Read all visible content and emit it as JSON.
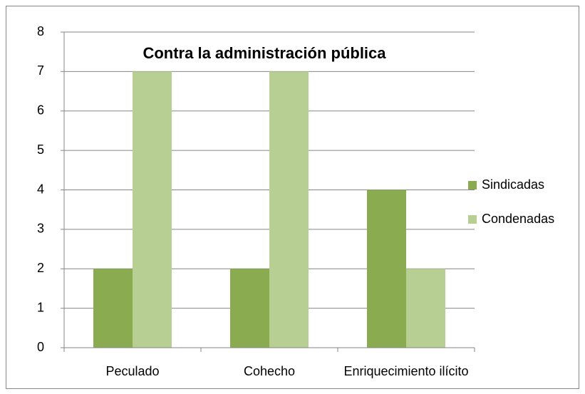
{
  "chart_data": {
    "type": "bar",
    "title": "Contra la administración pública",
    "categories": [
      "Peculado",
      "Cohecho",
      "Enriquecimiento ilícito"
    ],
    "series": [
      {
        "name": "Sindicadas",
        "color": "#8aab4f",
        "values": [
          2,
          2,
          4
        ]
      },
      {
        "name": "Condenadas",
        "color": "#b8cf93",
        "values": [
          7,
          7,
          2
        ]
      }
    ],
    "ylim": [
      0,
      8
    ],
    "yticks": [
      0,
      1,
      2,
      3,
      4,
      5,
      6,
      7,
      8
    ],
    "grid": true,
    "legend": "right"
  }
}
